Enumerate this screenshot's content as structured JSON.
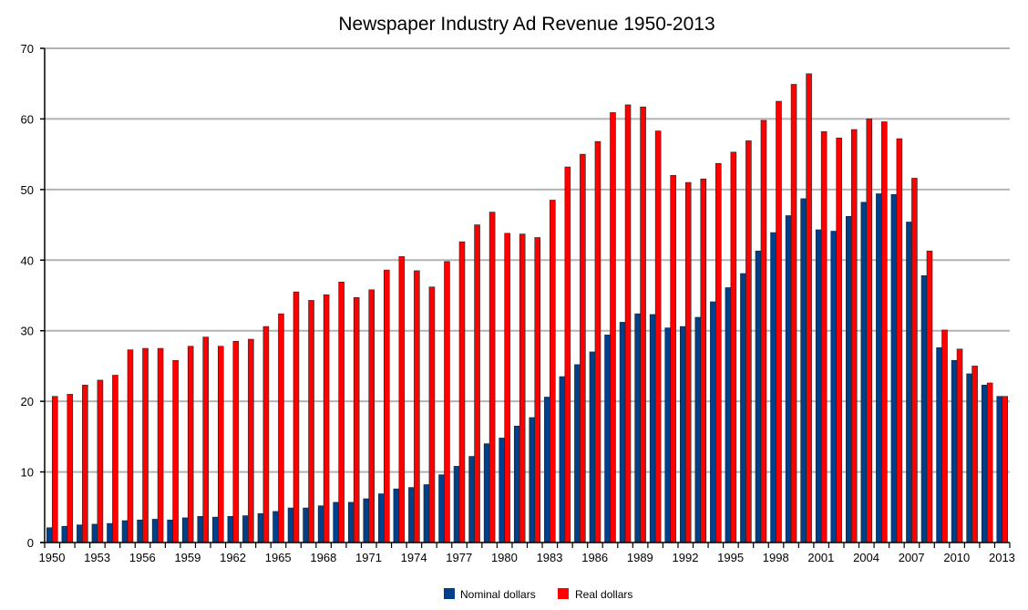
{
  "chart_data": {
    "type": "bar",
    "title": "Newspaper Industry Ad Revenue 1950-2013",
    "xlabel": "",
    "ylabel": "",
    "ylim": [
      0,
      70
    ],
    "yticks": [
      0,
      10,
      20,
      30,
      40,
      50,
      60,
      70
    ],
    "grid": true,
    "legend_position": "bottom-center",
    "categories": [
      1950,
      1951,
      1952,
      1953,
      1954,
      1955,
      1956,
      1957,
      1958,
      1959,
      1960,
      1961,
      1962,
      1963,
      1964,
      1965,
      1966,
      1967,
      1968,
      1969,
      1970,
      1971,
      1972,
      1973,
      1974,
      1975,
      1976,
      1977,
      1978,
      1979,
      1980,
      1981,
      1982,
      1983,
      1984,
      1985,
      1986,
      1987,
      1988,
      1989,
      1990,
      1991,
      1992,
      1993,
      1994,
      1995,
      1996,
      1997,
      1998,
      1999,
      2000,
      2001,
      2002,
      2003,
      2004,
      2005,
      2006,
      2007,
      2008,
      2009,
      2010,
      2011,
      2012,
      2013
    ],
    "xtick_labels": [
      "1950",
      "1953",
      "1956",
      "1959",
      "1962",
      "1965",
      "1968",
      "1971",
      "1974",
      "1977",
      "1980",
      "1983",
      "1986",
      "1989",
      "1992",
      "1995",
      "1998",
      "2001",
      "2004",
      "2007",
      "2010",
      "2013"
    ],
    "series": [
      {
        "name": "Nominal dollars",
        "color": "#003f8a",
        "values": [
          2.1,
          2.3,
          2.5,
          2.6,
          2.7,
          3.1,
          3.2,
          3.3,
          3.2,
          3.5,
          3.7,
          3.6,
          3.7,
          3.8,
          4.1,
          4.4,
          4.9,
          4.9,
          5.2,
          5.7,
          5.7,
          6.2,
          6.9,
          7.6,
          7.8,
          8.2,
          9.6,
          10.8,
          12.2,
          14.0,
          14.8,
          16.5,
          17.7,
          20.6,
          23.5,
          25.2,
          27.0,
          29.4,
          31.2,
          32.4,
          32.3,
          30.4,
          30.6,
          31.9,
          34.1,
          36.1,
          38.1,
          41.3,
          43.9,
          46.3,
          48.7,
          44.3,
          44.1,
          46.2,
          48.2,
          49.4,
          49.3,
          45.4,
          37.8,
          27.6,
          25.8,
          23.9,
          22.3,
          20.7
        ]
      },
      {
        "name": "Real dollars",
        "color": "#ff0000",
        "values": [
          20.7,
          21.0,
          22.3,
          23.0,
          23.7,
          27.3,
          27.5,
          27.5,
          25.8,
          27.8,
          29.1,
          27.8,
          28.5,
          28.8,
          30.6,
          32.4,
          35.5,
          34.3,
          35.1,
          36.9,
          34.7,
          35.8,
          38.6,
          40.5,
          38.5,
          36.2,
          39.8,
          42.6,
          45.0,
          46.8,
          43.8,
          43.7,
          43.2,
          48.5,
          53.2,
          55.0,
          56.8,
          60.9,
          62.0,
          61.7,
          58.3,
          52.0,
          51.0,
          51.5,
          53.7,
          55.3,
          56.9,
          59.8,
          62.5,
          64.9,
          66.4,
          58.2,
          57.3,
          58.5,
          60.0,
          59.6,
          57.2,
          51.6,
          41.3,
          30.1,
          27.4,
          25.0,
          22.6,
          20.7
        ]
      }
    ]
  }
}
